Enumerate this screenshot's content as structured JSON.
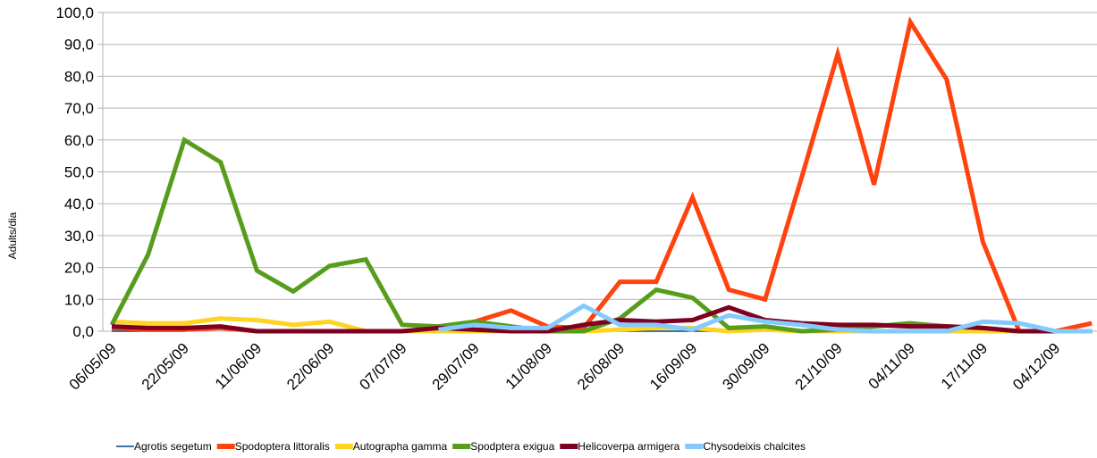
{
  "chart_data": {
    "type": "line",
    "y_label": "Adults/dia",
    "categories": [
      "06/05/09",
      null,
      "22/05/09",
      null,
      "11/06/09",
      null,
      "22/06/09",
      null,
      "07/07/09",
      null,
      "29/07/09",
      null,
      "11/08/09",
      null,
      "26/08/09",
      null,
      "16/09/09",
      null,
      "30/09/09",
      null,
      "21/10/09",
      null,
      "04/11/09",
      null,
      "17/11/09",
      null,
      "04/12/09",
      null
    ],
    "ylim": [
      0,
      100
    ],
    "yticks": [
      {
        "value": 0,
        "label": "0,0"
      },
      {
        "value": 10,
        "label": "10,0"
      },
      {
        "value": 20,
        "label": "20,0"
      },
      {
        "value": 30,
        "label": "30,0"
      },
      {
        "value": 40,
        "label": "40,0"
      },
      {
        "value": 50,
        "label": "50,0"
      },
      {
        "value": 60,
        "label": "60,0"
      },
      {
        "value": 70,
        "label": "70,0"
      },
      {
        "value": 80,
        "label": "80,0"
      },
      {
        "value": 90,
        "label": "90,0"
      },
      {
        "value": 100,
        "label": "100,0"
      }
    ],
    "grid": true,
    "legend": "bottom",
    "series": [
      {
        "name": "Agrotis  segetum",
        "color": "#004586",
        "width": 1.5,
        "values": [
          0,
          0,
          0,
          1.5,
          0,
          0,
          0,
          0,
          0,
          0,
          0,
          0,
          0,
          0,
          0,
          0,
          0,
          0,
          0,
          0,
          0,
          0,
          0,
          0,
          0,
          0,
          0,
          0
        ]
      },
      {
        "name": "Spodoptera littoralis",
        "color": "#ff420e",
        "width": 5,
        "values": [
          1,
          0.5,
          0.5,
          1,
          0,
          0,
          0,
          0,
          0,
          0.5,
          3,
          6.5,
          1.5,
          1,
          15.5,
          15.5,
          42,
          13,
          10,
          48,
          87,
          46,
          97,
          79,
          28,
          0,
          0,
          2.5
        ]
      },
      {
        "name": "Autographa gamma",
        "color": "#ffd320",
        "width": 5,
        "values": [
          3,
          2.5,
          2.5,
          4,
          3.5,
          2,
          3,
          0,
          0,
          0,
          0,
          0,
          0,
          0,
          0.5,
          1,
          1,
          0,
          0.5,
          0,
          0,
          0,
          0,
          0,
          0,
          0,
          0,
          0
        ]
      },
      {
        "name": "Spodptera exigua",
        "color": "#579d1c",
        "width": 5,
        "values": [
          2,
          24,
          60,
          53,
          19,
          12.5,
          20.5,
          22.5,
          2,
          1.5,
          3,
          1.5,
          0,
          0,
          4,
          13,
          10.5,
          1,
          1.5,
          0,
          0.5,
          1.5,
          2.5,
          1.5,
          1,
          0,
          0,
          0
        ]
      },
      {
        "name": "Helicoverpa armigera",
        "color": "#7e0021",
        "width": 5,
        "values": [
          1.5,
          1,
          1,
          1.5,
          0,
          0,
          0,
          0,
          0,
          1,
          0.5,
          0,
          0,
          2,
          3.5,
          3,
          3.5,
          7.5,
          3.5,
          2.5,
          2,
          2,
          1.5,
          1.5,
          1,
          0,
          0,
          0
        ]
      },
      {
        "name": "Chysodeixis chalcites",
        "color": "#83caff",
        "width": 5,
        "values": [
          null,
          null,
          null,
          null,
          null,
          null,
          null,
          null,
          null,
          0.5,
          2,
          1,
          1,
          8,
          2,
          2,
          0.5,
          5,
          3,
          2,
          0.5,
          0,
          0,
          0,
          3,
          2.5,
          0,
          0
        ]
      }
    ]
  }
}
